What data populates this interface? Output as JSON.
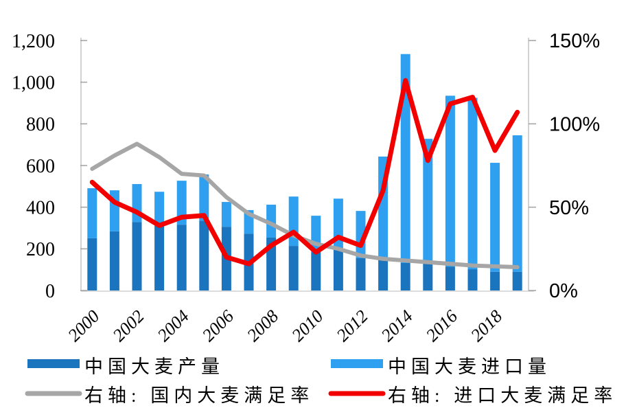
{
  "chart_data": {
    "type": "combo-bar-line",
    "title": "",
    "categories": [
      "2000",
      "2001",
      "2002",
      "2003",
      "2004",
      "2005",
      "2006",
      "2007",
      "2008",
      "2009",
      "2010",
      "2011",
      "2012",
      "2013",
      "2014",
      "2015",
      "2016",
      "2017",
      "2018",
      "2019"
    ],
    "x_tick_labels": [
      "2000",
      "2002",
      "2004",
      "2006",
      "2008",
      "2010",
      "2012",
      "2014",
      "2016",
      "2018"
    ],
    "left_axis": {
      "min": 0,
      "max": 1200,
      "tick_labels": [
        "0",
        "200",
        "400",
        "600",
        "800",
        "1,000",
        "1,200"
      ]
    },
    "right_axis": {
      "min": 0,
      "max": 150,
      "tick_labels": [
        "0%",
        "50%",
        "100%",
        "150%"
      ]
    },
    "grid": false,
    "legend_position": "bottom-two-columns",
    "series": [
      {
        "name": "中国大麦产量",
        "type": "bar",
        "stack": "supply",
        "axis": "left",
        "color": "#1B74BE",
        "values": [
          251,
          284,
          329,
          310,
          316,
          335,
          306,
          273,
          254,
          214,
          183,
          198,
          155,
          148,
          132,
          135,
          115,
          102,
          90,
          90
        ]
      },
      {
        "name": "中国大麦进口量",
        "type": "bar",
        "stack": "supply",
        "axis": "left",
        "color": "#2FA0F0",
        "values": [
          240,
          197,
          182,
          164,
          211,
          222,
          119,
          113,
          158,
          237,
          176,
          243,
          227,
          495,
          1003,
          593,
          820,
          823,
          523,
          655
        ]
      },
      {
        "name": "右轴: 国内大麦满足率",
        "type": "line",
        "axis": "right",
        "color": "#A6A6A6",
        "values": [
          73,
          81,
          88,
          80,
          70,
          69,
          56,
          46,
          40,
          33,
          28,
          25,
          21,
          19,
          18,
          17,
          16,
          15,
          14.5,
          14
        ]
      },
      {
        "name": "右轴: 进口大麦满足率",
        "type": "line",
        "axis": "right",
        "color": "#F20000",
        "values": [
          65,
          53,
          47,
          39,
          44,
          45,
          20,
          16,
          27,
          35,
          23,
          32,
          27,
          60,
          126,
          78,
          112,
          116,
          84,
          107
        ]
      }
    ],
    "colors": {
      "axis_line": "#C6C6C6",
      "tick_mark": "#A6A6A6",
      "baseline": "#D0D0D0",
      "text": "#000000"
    }
  }
}
